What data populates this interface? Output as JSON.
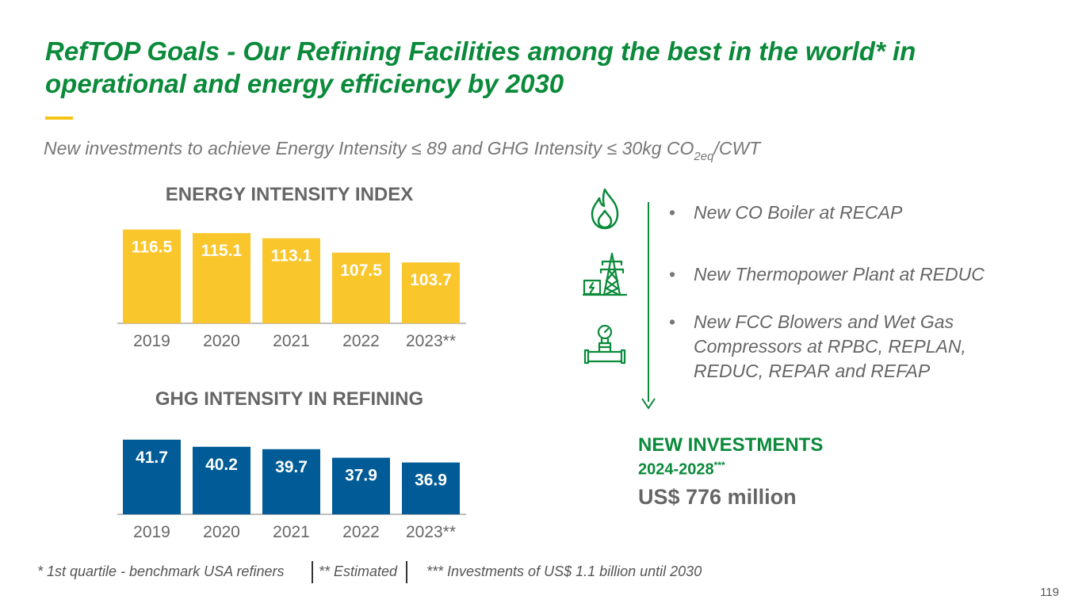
{
  "slide": {
    "title": "RefTOP Goals - Our Refining Facilities among the best in the world* in operational and energy efficiency by 2030",
    "subtitle_main": "New investments to achieve Energy Intensity ≤ 89 and GHG Intensity ≤ 30kg CO",
    "subtitle_sub": "2eq",
    "subtitle_end": "/CWT",
    "page_number": "119"
  },
  "chart_data": [
    {
      "type": "bar",
      "title": "ENERGY INTENSITY INDEX",
      "categories": [
        "2019",
        "2020",
        "2021",
        "2022",
        "2023**"
      ],
      "values": [
        116.5,
        115.1,
        113.1,
        107.5,
        103.7
      ],
      "value_labels": [
        "116.5",
        "115.1",
        "113.1",
        "107.5",
        "103.7"
      ],
      "ylim": [
        80,
        117
      ],
      "color": "#f9c62b",
      "label_color": "#ffffff",
      "xlabel": "",
      "ylabel": ""
    },
    {
      "type": "bar",
      "title": "GHG INTENSITY IN REFINING",
      "categories": [
        "2019",
        "2020",
        "2021",
        "2022",
        "2023**"
      ],
      "values": [
        41.7,
        40.2,
        39.7,
        37.9,
        36.9
      ],
      "value_labels": [
        "41.7",
        "40.2",
        "39.7",
        "37.9",
        "36.9"
      ],
      "ylim": [
        26,
        42
      ],
      "color": "#005b96",
      "label_color": "#ffffff",
      "xlabel": "",
      "ylabel": ""
    }
  ],
  "projects": [
    {
      "icon": "flame-icon",
      "text": "New CO Boiler at RECAP"
    },
    {
      "icon": "power-tower-icon",
      "text": "New Thermopower Plant at REDUC"
    },
    {
      "icon": "pipe-gauge-icon",
      "text": "New FCC Blowers and Wet Gas Compressors at RPBC, REPLAN, REDUC, REPAR and REFAP"
    }
  ],
  "bullet_symbol": "•",
  "investments": {
    "heading": "NEW INVESTMENTS",
    "period": "2024-2028",
    "period_marker": "***",
    "amount": "US$ 776 million"
  },
  "footnotes": {
    "first": "* 1st quartile - benchmark USA refiners",
    "second": "** Estimated",
    "third": "*** Investments of US$ 1.1 billion until 2030"
  },
  "colors": {
    "brand_green": "#0a8a3a",
    "accent_yellow": "#f5c518",
    "energy_bar": "#f9c62b",
    "ghg_bar": "#005b96"
  }
}
